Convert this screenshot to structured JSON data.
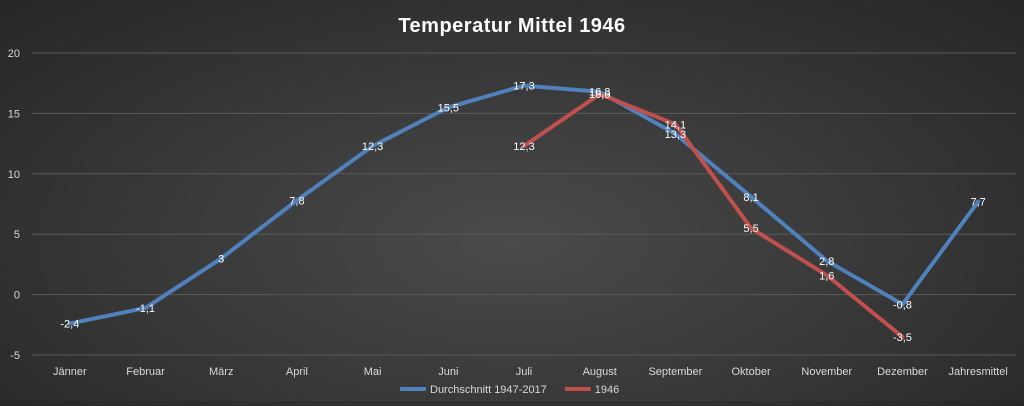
{
  "chart_data": {
    "type": "line",
    "title": "Temperatur Mittel 1946",
    "categories": [
      "Jänner",
      "Februar",
      "März",
      "April",
      "Mai",
      "Juni",
      "Juli",
      "August",
      "September",
      "Oktober",
      "November",
      "Dezember",
      "Jahresmittel"
    ],
    "ylim": [
      -5,
      20
    ],
    "yticks": [
      -5,
      0,
      5,
      10,
      15,
      20
    ],
    "grid": true,
    "legend_position": "bottom",
    "series": [
      {
        "name": "Durchschnitt 1947-2017",
        "color": "#4f81bd",
        "values": [
          -2.4,
          -1.1,
          3,
          7.8,
          12.3,
          15.5,
          17.3,
          16.8,
          13.3,
          8.1,
          2.8,
          -0.8,
          7.7
        ],
        "labels": [
          "-2,4",
          "-1,1",
          "3",
          "7,8",
          "12,3",
          "15,5",
          "17,3",
          "16,8",
          "13,3",
          "8,1",
          "2,8",
          "-0,8",
          "7,7"
        ]
      },
      {
        "name": "1946",
        "color": "#c0504d",
        "values": [
          null,
          null,
          null,
          null,
          null,
          null,
          12.3,
          16.6,
          14.1,
          5.5,
          1.6,
          -3.5,
          null
        ],
        "labels": [
          null,
          null,
          null,
          null,
          null,
          null,
          "12,3",
          "16,6",
          "14,1",
          "5,5",
          "1,6",
          "-3,5",
          null
        ]
      }
    ]
  }
}
